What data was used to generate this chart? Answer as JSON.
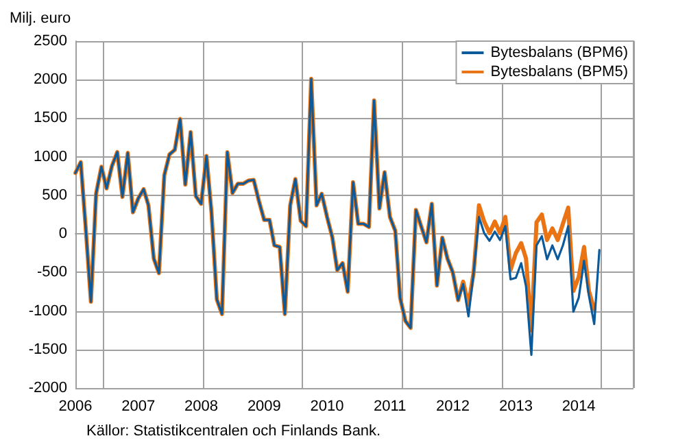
{
  "chart_data": {
    "type": "line",
    "ylabel": "Milj. euro",
    "annotations": [
      "Källor: Statistikcentralen och Finlands Bank."
    ],
    "x": [
      "2006-01",
      "2006-02",
      "2006-03",
      "2006-04",
      "2006-05",
      "2006-06",
      "2006-07",
      "2006-08",
      "2006-09",
      "2006-10",
      "2006-11",
      "2006-12",
      "2007-01",
      "2007-02",
      "2007-03",
      "2007-04",
      "2007-05",
      "2007-06",
      "2007-07",
      "2007-08",
      "2007-09",
      "2007-10",
      "2007-11",
      "2007-12",
      "2008-01",
      "2008-02",
      "2008-03",
      "2008-04",
      "2008-05",
      "2008-06",
      "2008-07",
      "2008-08",
      "2008-09",
      "2008-10",
      "2008-11",
      "2008-12",
      "2009-01",
      "2009-02",
      "2009-03",
      "2009-04",
      "2009-05",
      "2009-06",
      "2009-07",
      "2009-08",
      "2009-09",
      "2009-10",
      "2009-11",
      "2009-12",
      "2010-01",
      "2010-02",
      "2010-03",
      "2010-04",
      "2010-05",
      "2010-06",
      "2010-07",
      "2010-08",
      "2010-09",
      "2010-10",
      "2010-11",
      "2010-12",
      "2011-01",
      "2011-02",
      "2011-03",
      "2011-04",
      "2011-05",
      "2011-06",
      "2011-07",
      "2011-08",
      "2011-09",
      "2011-10",
      "2011-11",
      "2011-12",
      "2012-01",
      "2012-02",
      "2012-03",
      "2012-04",
      "2012-05",
      "2012-06",
      "2012-07",
      "2012-08",
      "2012-09",
      "2012-10",
      "2012-11",
      "2012-12",
      "2013-01",
      "2013-02",
      "2013-03",
      "2013-04",
      "2013-05",
      "2013-06",
      "2013-07",
      "2013-08",
      "2013-09",
      "2013-10",
      "2013-11",
      "2013-12",
      "2014-01",
      "2014-02",
      "2014-03",
      "2014-04",
      "2014-05"
    ],
    "series": [
      {
        "name": "Bytesbalans (BPM6)",
        "color": "#0b5a9b",
        "values": [
          790,
          930,
          100,
          -880,
          520,
          870,
          590,
          880,
          1060,
          480,
          1050,
          280,
          460,
          580,
          370,
          -320,
          -510,
          760,
          1030,
          1090,
          1490,
          640,
          1320,
          490,
          390,
          1010,
          280,
          -850,
          -1040,
          1060,
          530,
          650,
          650,
          690,
          700,
          430,
          180,
          180,
          -150,
          -170,
          -1040,
          370,
          710,
          170,
          100,
          2010,
          370,
          520,
          220,
          -50,
          -470,
          -380,
          -750,
          670,
          130,
          130,
          90,
          1730,
          330,
          800,
          220,
          40,
          -830,
          -1130,
          -1220,
          310,
          100,
          -110,
          390,
          -670,
          -50,
          -320,
          -500,
          -860,
          -650,
          -1070,
          -500,
          220,
          10,
          -90,
          30,
          -80,
          100,
          -590,
          -570,
          -380,
          -680,
          -1570,
          -150,
          -30,
          -330,
          -150,
          -330,
          -150,
          100,
          -1010,
          -830,
          -350,
          -800,
          -1170,
          -210
        ]
      },
      {
        "name": "Bytesbalans (BPM5)",
        "color": "#ea7414",
        "values": [
          790,
          930,
          100,
          -880,
          520,
          870,
          590,
          880,
          1060,
          480,
          1050,
          280,
          460,
          580,
          370,
          -320,
          -510,
          760,
          1030,
          1090,
          1490,
          640,
          1320,
          490,
          390,
          1010,
          280,
          -850,
          -1040,
          1060,
          530,
          650,
          650,
          690,
          700,
          430,
          180,
          180,
          -150,
          -170,
          -1040,
          370,
          710,
          170,
          100,
          2010,
          370,
          520,
          220,
          -50,
          -470,
          -380,
          -750,
          670,
          130,
          130,
          90,
          1730,
          330,
          800,
          220,
          40,
          -830,
          -1130,
          -1220,
          310,
          100,
          -110,
          390,
          -670,
          -50,
          -320,
          -500,
          -860,
          -620,
          -920,
          -500,
          370,
          160,
          10,
          160,
          10,
          220,
          -470,
          -250,
          -120,
          -320,
          -1250,
          150,
          250,
          -80,
          70,
          -80,
          130,
          340,
          -740,
          -560,
          -170,
          -740,
          -980,
          null
        ]
      }
    ],
    "xlim": [
      "2006-01",
      "2014-11-15"
    ],
    "xticks": [
      "2006",
      "2007",
      "2008",
      "2009",
      "2010",
      "2011",
      "2012",
      "2013",
      "2014"
    ],
    "ylim": [
      -2000,
      2500
    ],
    "yticks": [
      -2000,
      -1500,
      -1000,
      -500,
      0,
      500,
      1000,
      1500,
      2000,
      2500
    ],
    "grid": true,
    "legend": "top right",
    "marker": "none",
    "line_style": "solid"
  }
}
